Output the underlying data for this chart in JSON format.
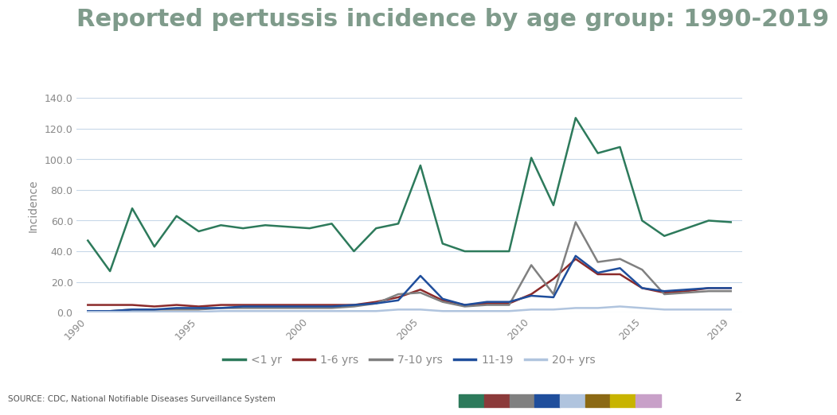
{
  "title": "Reported pertussis incidence by age group: 1990-2019",
  "ylabel": "Incidence",
  "source_text": "SOURCE: CDC, National Notifiable Diseases Surveillance System",
  "slide_number": "2",
  "background_color": "#ffffff",
  "title_color": "#7f9b8b",
  "title_fontsize": 22,
  "years": [
    1990,
    1991,
    1992,
    1993,
    1994,
    1995,
    1996,
    1997,
    1998,
    1999,
    2000,
    2001,
    2002,
    2003,
    2004,
    2005,
    2006,
    2007,
    2008,
    2009,
    2010,
    2011,
    2012,
    2013,
    2014,
    2015,
    2016,
    2017,
    2018,
    2019
  ],
  "series": {
    "lt1yr": {
      "label": "<1 yr",
      "color": "#2d7a5b",
      "values": [
        47,
        27,
        68,
        43,
        63,
        53,
        57,
        55,
        57,
        56,
        55,
        58,
        40,
        55,
        58,
        96,
        45,
        40,
        40,
        40,
        101,
        70,
        127,
        104,
        108,
        60,
        50,
        55,
        60,
        59
      ]
    },
    "1to6yr": {
      "label": "1-6 yrs",
      "color": "#8b2a2a",
      "values": [
        5,
        5,
        5,
        4,
        5,
        4,
        5,
        5,
        5,
        5,
        5,
        5,
        5,
        7,
        10,
        15,
        8,
        5,
        6,
        6,
        12,
        22,
        35,
        25,
        25,
        16,
        13,
        14,
        16,
        16
      ]
    },
    "7to10yr": {
      "label": "7-10 yrs",
      "color": "#808080",
      "values": [
        1,
        1,
        2,
        2,
        2,
        2,
        3,
        3,
        3,
        3,
        3,
        3,
        4,
        6,
        12,
        13,
        7,
        4,
        5,
        5,
        31,
        12,
        59,
        33,
        35,
        28,
        12,
        13,
        14,
        14
      ]
    },
    "11to19": {
      "label": "11-19",
      "color": "#1f4e9c",
      "values": [
        1,
        1,
        2,
        2,
        3,
        3,
        3,
        4,
        4,
        4,
        4,
        4,
        5,
        6,
        8,
        24,
        9,
        5,
        7,
        7,
        11,
        10,
        37,
        26,
        29,
        16,
        14,
        15,
        16,
        16
      ]
    },
    "20plus": {
      "label": "20+ yrs",
      "color": "#b0c4de",
      "values": [
        0.5,
        0.5,
        0.5,
        0.5,
        0.5,
        0.5,
        1,
        1,
        1,
        1,
        1,
        1,
        1,
        1,
        2,
        2,
        1,
        1,
        1,
        1,
        2,
        2,
        3,
        3,
        4,
        3,
        2,
        2,
        2,
        2
      ]
    }
  },
  "ylim": [
    0,
    140
  ],
  "yticks": [
    0,
    20,
    40,
    60,
    80,
    100,
    120,
    140
  ],
  "xtick_years": [
    1990,
    1995,
    2000,
    2005,
    2010,
    2015,
    2019
  ],
  "grid_color": "#c8d8e8",
  "tick_color": "#888888",
  "legend_fontsize": 10,
  "footer_color_blocks": [
    "#2d7a5b",
    "#8b3a3a",
    "#808080",
    "#1f4e9c",
    "#b0c4de",
    "#8b6914",
    "#c8b400",
    "#c8a0c8"
  ]
}
